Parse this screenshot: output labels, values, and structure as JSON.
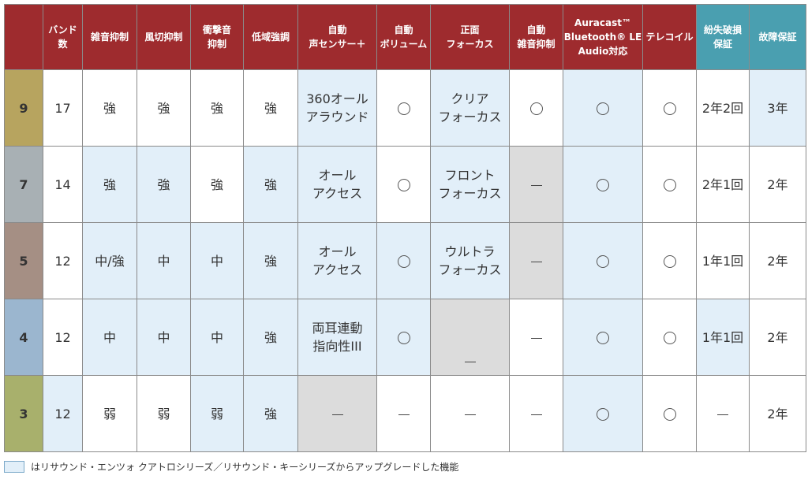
{
  "colors": {
    "header_bg": "#9e2b2e",
    "header_teal": "#4a9fb0",
    "highlight": "#e2eff9",
    "gray_cell": "#dcdcdc",
    "tier_colors": [
      "#b7a45f",
      "#a8b0b4",
      "#a58f84",
      "#9bb6cf",
      "#a8b06c"
    ]
  },
  "headers": [
    "",
    "バンド\n数",
    "雑音抑制",
    "風切抑制",
    "衝撃音\n抑制",
    "低域強調",
    "自動\n声センサー＋",
    "自動\nボリューム",
    "正面\nフォーカス",
    "自動\n雑音抑制",
    "Auracast™\nBluetooth® LE\nAudio対応",
    "テレコイル",
    "紛失破損\n保証",
    "故障保証"
  ],
  "rows": [
    {
      "tier": "9",
      "cells": [
        "17",
        "強",
        "強",
        "強",
        "強",
        "360オール\nアラウンド",
        "○",
        "クリア\nフォーカス",
        "○",
        "○",
        "○",
        "2年2回",
        "3年"
      ]
    },
    {
      "tier": "7",
      "cells": [
        "14",
        "強",
        "強",
        "強",
        "強",
        "オール\nアクセス",
        "○",
        "フロント\nフォーカス",
        "ー",
        "○",
        "○",
        "2年1回",
        "2年"
      ]
    },
    {
      "tier": "5",
      "cells": [
        "12",
        "中/強",
        "中",
        "中",
        "強",
        "オール\nアクセス",
        "○",
        "ウルトラ\nフォーカス",
        "ー",
        "○",
        "○",
        "1年1回",
        "2年"
      ]
    },
    {
      "tier": "4",
      "cells": [
        "12",
        "中",
        "中",
        "中",
        "強",
        "両耳連動\n指向性III",
        "○",
        "ー",
        "ー",
        "○",
        "○",
        "1年1回",
        "2年"
      ]
    },
    {
      "tier": "3",
      "cells": [
        "12",
        "弱",
        "弱",
        "弱",
        "強",
        "ー",
        "ー",
        "ー",
        "ー",
        "○",
        "○",
        "ー",
        "2年"
      ]
    }
  ],
  "legend": "はリサウンド・エンツォ クアトロシリーズ／リサウンド・キーシリーズからアップグレードした機能"
}
